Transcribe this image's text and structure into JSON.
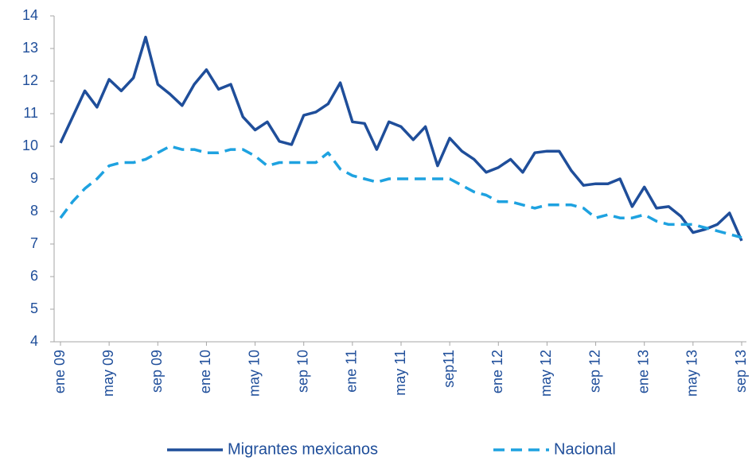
{
  "chart_data": {
    "type": "line",
    "categories": [
      "ene 09",
      null,
      null,
      null,
      "may 09",
      null,
      null,
      null,
      "sep 09",
      null,
      null,
      null,
      "ene 10",
      null,
      null,
      null,
      "may 10",
      null,
      null,
      null,
      "sep 10",
      null,
      null,
      null,
      "ene 11",
      null,
      null,
      null,
      "may 11",
      null,
      null,
      null,
      "sep11",
      null,
      null,
      null,
      "ene 12",
      null,
      null,
      null,
      "may 12",
      null,
      null,
      null,
      "sep 12",
      null,
      null,
      null,
      "ene 13",
      null,
      null,
      null,
      "may 13",
      null,
      null,
      null,
      "sep 13"
    ],
    "series": [
      {
        "name": "Migrantes mexicanos",
        "color": "#1f4e9a",
        "dash": false,
        "values": [
          10.1,
          10.9,
          11.7,
          11.2,
          12.05,
          11.7,
          12.1,
          13.35,
          11.9,
          11.6,
          11.25,
          11.9,
          12.35,
          11.75,
          11.9,
          10.9,
          10.5,
          10.75,
          10.15,
          10.05,
          10.95,
          11.05,
          11.3,
          11.95,
          10.75,
          10.7,
          9.9,
          10.75,
          10.6,
          10.2,
          10.6,
          9.4,
          10.25,
          9.85,
          9.6,
          9.2,
          9.35,
          9.6,
          9.2,
          9.8,
          9.85,
          9.85,
          9.25,
          8.8,
          8.85,
          8.85,
          9.0,
          8.15,
          8.75,
          8.1,
          8.15,
          7.85,
          7.35,
          7.45,
          7.6,
          7.95,
          7.1
        ]
      },
      {
        "name": "Nacional",
        "color": "#1ea2e0",
        "dash": true,
        "values": [
          7.8,
          8.3,
          8.7,
          9.0,
          9.4,
          9.5,
          9.5,
          9.6,
          9.8,
          10.0,
          9.9,
          9.9,
          9.8,
          9.8,
          9.9,
          9.9,
          9.7,
          9.4,
          9.5,
          9.5,
          9.5,
          9.5,
          9.8,
          9.3,
          9.1,
          9.0,
          8.9,
          9.0,
          9.0,
          9.0,
          9.0,
          9.0,
          9.0,
          8.8,
          8.6,
          8.5,
          8.3,
          8.3,
          8.2,
          8.1,
          8.2,
          8.2,
          8.2,
          8.1,
          7.8,
          7.9,
          7.8,
          7.8,
          7.9,
          7.7,
          7.6,
          7.6,
          7.6,
          7.5,
          7.4,
          7.3,
          7.2
        ]
      }
    ],
    "ylim": [
      4,
      14
    ],
    "yticks": [
      4,
      5,
      6,
      7,
      8,
      9,
      10,
      11,
      12,
      13,
      14
    ],
    "grid": false,
    "legend": "bottom"
  }
}
